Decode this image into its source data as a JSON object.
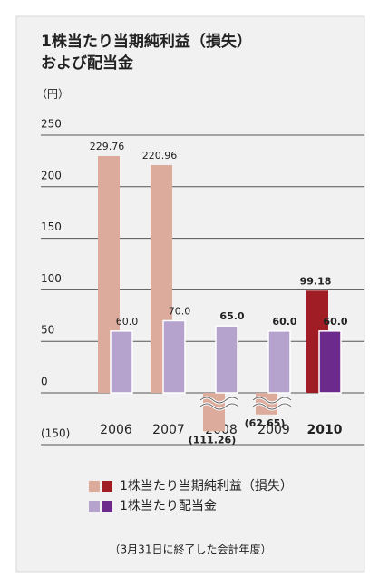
{
  "chart_data": {
    "type": "bar",
    "title": [
      "1株当たり当期純利益（損失）",
      "および配当金"
    ],
    "y_unit": "（円）",
    "note": "（3月31日に終了した会計年度）",
    "categories": [
      "2006",
      "2007",
      "2008",
      "2009",
      "2010"
    ],
    "highlight_category": "2010",
    "series": [
      {
        "name": "1株当たり当期純利益（損失）",
        "color": "#dcab9c",
        "highlight_color": "#a11d25",
        "values": [
          229.76,
          220.96,
          -111.26,
          -62.65,
          99.18
        ],
        "value_labels": [
          "229.76",
          "220.96",
          "(111.26)",
          "(62.65)",
          "99.18"
        ]
      },
      {
        "name": "1株当たり配当金",
        "color": "#b5a2cd",
        "highlight_color": "#6b2a8c",
        "values": [
          60.0,
          70.0,
          65.0,
          60.0,
          60.0
        ],
        "value_labels": [
          "60.0",
          "70.0",
          "65.0",
          "60.0",
          "60.0"
        ]
      }
    ],
    "ylim": [
      -150,
      250
    ],
    "yticks": [
      {
        "value": -150,
        "label": "(150)"
      },
      0,
      50,
      100,
      150,
      200,
      250
    ],
    "broken_axis": true,
    "grid": true
  }
}
